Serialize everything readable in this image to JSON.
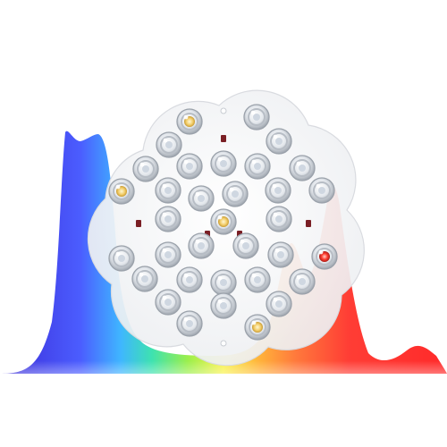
{
  "image": {
    "subject": "led-module-with-spectrum",
    "colors": {
      "background": "#ffffff",
      "board": "#f2f3f5",
      "board_edge": "#d9dbe0",
      "lens_ring": "#aeb4bc",
      "lens_center": "#eef1f5",
      "chip_cool": "#c9d3df",
      "chip_warm": "#f3cf6c",
      "chip_red": "#ff3b2f",
      "resistor": "#7a1f25",
      "spectrum": [
        "#3b2bd6",
        "#4a6bff",
        "#39c0ff",
        "#41e1a0",
        "#a6ee45",
        "#ffe34a",
        "#ff9a3c",
        "#ff4c3c",
        "#ff2a2a"
      ]
    }
  }
}
